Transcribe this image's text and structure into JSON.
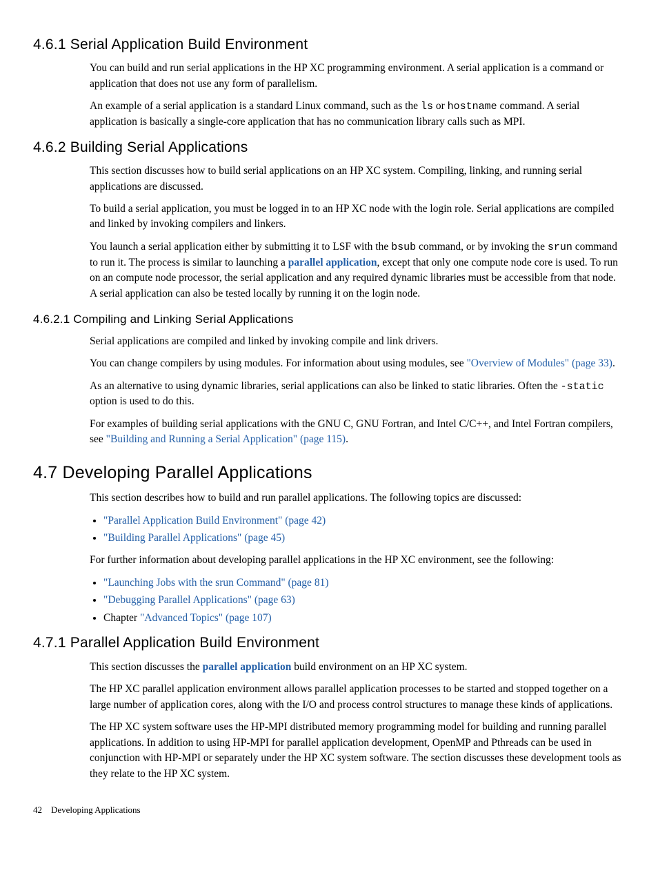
{
  "s461": {
    "heading": "4.6.1 Serial Application Build Environment",
    "p1_a": "You can build and run serial applications in the HP XC programming environment. A serial application is a command or application that does not use any form of parallelism.",
    "p2_a": "An example of a serial application is a standard Linux command, such as the ",
    "p2_code1": "ls",
    "p2_b": " or ",
    "p2_code2": "hostname",
    "p2_c": " command. A serial application is basically a single-core application that has no communication library calls such as MPI."
  },
  "s462": {
    "heading": "4.6.2 Building Serial Applications",
    "p1": "This section discusses how to build serial applications on an HP XC system. Compiling, linking, and running serial applications are discussed.",
    "p2": "To build a serial application, you must be logged in to an HP XC node with the login role. Serial applications are compiled and linked by invoking compilers and linkers.",
    "p3_a": "You launch a serial application either by submitting it to LSF with the ",
    "p3_code1": "bsub",
    "p3_b": " command, or by invoking the ",
    "p3_code2": "srun",
    "p3_c": " command to run it. The process is similar to launching a ",
    "p3_term": "parallel application",
    "p3_d": ", except that only one compute node core is used. To run on an compute node processor, the serial application and any required dynamic libraries must be accessible from that node. A serial application can also be tested locally by running it on the login node."
  },
  "s4621": {
    "heading": "4.6.2.1 Compiling and Linking Serial Applications",
    "p1": "Serial applications are compiled and linked by invoking compile and link drivers.",
    "p2_a": "You can change compilers by using modules. For information about using modules, see ",
    "p2_link": "\"Overview of Modules\" (page 33)",
    "p2_b": ".",
    "p3_a": "As an alternative to using dynamic libraries, serial applications can also be linked to static libraries. Often the ",
    "p3_code": "-static",
    "p3_b": " option is used to do this.",
    "p4_a": "For examples of building serial applications with the GNU C, GNU Fortran, and Intel C/C++, and Intel Fortran compilers, see ",
    "p4_link": "\"Building and Running a Serial Application\" (page 115)",
    "p4_b": "."
  },
  "s47": {
    "heading": "4.7 Developing Parallel Applications",
    "p1": "This section describes how to build and run parallel applications. The following topics are discussed:",
    "li1": "\"Parallel Application Build Environment\" (page 42)",
    "li2": "\"Building Parallel Applications\" (page 45)",
    "p2": "For further information about developing parallel applications in the HP XC environment, see the following:",
    "li3": "\"Launching Jobs with the srun Command\" (page 81)",
    "li4": "\"Debugging Parallel Applications\" (page 63)",
    "li5_a": "Chapter ",
    "li5_link": "\"Advanced Topics\" (page 107)"
  },
  "s471": {
    "heading": "4.7.1 Parallel Application Build Environment",
    "p1_a": "This section discusses the ",
    "p1_term": "parallel application",
    "p1_b": " build environment on an HP XC system.",
    "p2": "The HP XC parallel application environment allows parallel application processes to be started and stopped together on a large number of application cores, along with the I/O and process control structures to manage these kinds of applications.",
    "p3": "The HP XC system software uses the HP-MPI distributed memory programming model for building and running parallel applications. In addition to using HP-MPI for parallel application development, OpenMP and Pthreads can be used in conjunction with HP-MPI or separately under the HP XC system software. The section discusses these development tools as they relate to the HP XC system."
  },
  "footer": {
    "page": "42",
    "chapter": "Developing Applications"
  }
}
